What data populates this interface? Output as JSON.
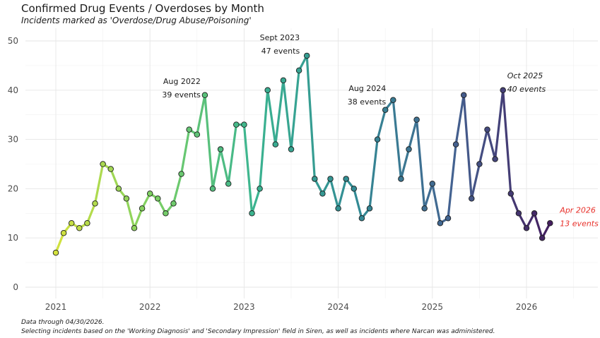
{
  "title": "Confirmed Drug Events / Overdoses by Month",
  "subtitle": "Incidents marked as 'Overdose/Drug Abuse/Poisoning'",
  "caption": [
    "Data through 04/30/2026.",
    "Selecting incidents based on the 'Working Diagnosis' and 'Secondary Impression' field in Siren, as well as incidents where Narcan was administered."
  ],
  "chart_data": {
    "type": "line",
    "xlabel": "",
    "ylabel": "",
    "x_ticks": [
      "2021",
      "2022",
      "2023",
      "2024",
      "2025",
      "2026"
    ],
    "y_ticks": [
      0,
      10,
      20,
      30,
      40,
      50
    ],
    "ylim": [
      0,
      50
    ],
    "grid": true,
    "color_scale": "viridis (yellow-green → purple over time)",
    "series": [
      {
        "x": [
          "2021-01",
          "2021-02",
          "2021-03",
          "2021-04",
          "2021-05",
          "2021-06",
          "2021-07",
          "2021-08",
          "2021-09",
          "2021-10",
          "2021-11",
          "2021-12",
          "2022-01",
          "2022-02",
          "2022-03",
          "2022-04",
          "2022-05",
          "2022-06",
          "2022-07",
          "2022-08",
          "2022-09",
          "2022-10",
          "2022-11",
          "2022-12",
          "2023-01",
          "2023-02",
          "2023-03",
          "2023-04",
          "2023-05",
          "2023-06",
          "2023-07",
          "2023-08",
          "2023-09",
          "2023-10",
          "2023-11",
          "2023-12",
          "2024-01",
          "2024-02",
          "2024-03",
          "2024-04",
          "2024-05",
          "2024-06",
          "2024-07",
          "2024-08",
          "2024-09",
          "2024-10",
          "2024-11",
          "2024-12",
          "2025-01",
          "2025-02",
          "2025-03",
          "2025-04",
          "2025-05",
          "2025-06",
          "2025-07",
          "2025-08",
          "2025-09",
          "2025-10",
          "2025-11",
          "2025-12",
          "2026-01",
          "2026-02",
          "2026-03",
          "2026-04"
        ],
        "values": [
          7,
          11,
          13,
          12,
          13,
          17,
          25,
          24,
          20,
          18,
          12,
          16,
          19,
          18,
          15,
          17,
          23,
          32,
          31,
          39,
          20,
          28,
          21,
          33,
          33,
          15,
          20,
          40,
          29,
          42,
          28,
          44,
          47,
          22,
          19,
          22,
          16,
          22,
          20,
          14,
          16,
          30,
          36,
          38,
          22,
          28,
          34,
          16,
          21,
          13,
          14,
          29,
          39,
          18,
          25,
          32,
          26,
          40,
          19,
          15,
          12,
          15,
          10,
          13
        ]
      }
    ],
    "annotations": [
      {
        "x": "2022-08",
        "lines": [
          "Aug 2022",
          "39 events"
        ],
        "style": "normal",
        "color": "#1a1a1a"
      },
      {
        "x": "2023-09",
        "lines": [
          "Sept 2023",
          "47 events"
        ],
        "style": "normal",
        "color": "#1a1a1a"
      },
      {
        "x": "2024-08",
        "lines": [
          "Aug 2024",
          "38 events"
        ],
        "style": "normal",
        "color": "#1a1a1a"
      },
      {
        "x": "2025-10",
        "lines": [
          "Oct 2025",
          "40 events"
        ],
        "style": "italic",
        "color": "#1a1a1a"
      },
      {
        "x": "2026-04",
        "lines": [
          "Apr 2026",
          "13 events"
        ],
        "style": "italic",
        "color": "#e8312b"
      }
    ]
  }
}
